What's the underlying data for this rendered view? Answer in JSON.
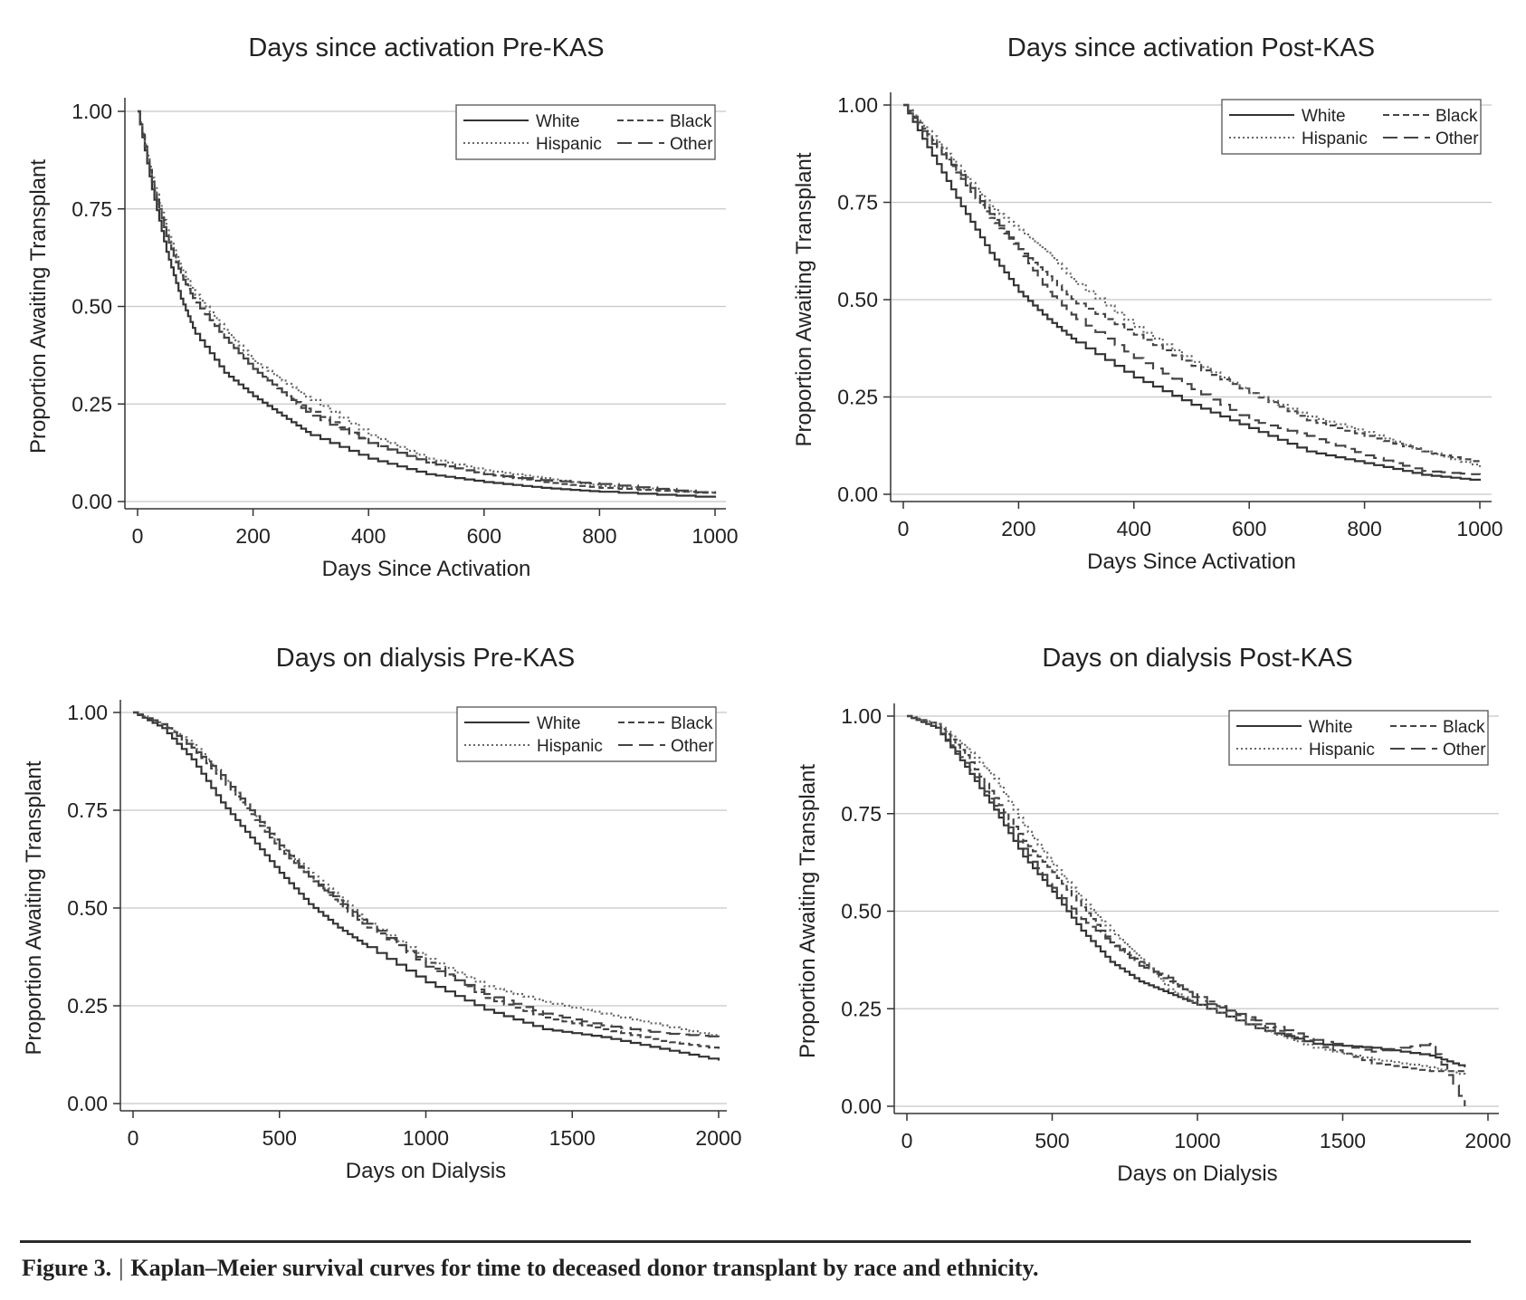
{
  "figure": {
    "label": "Figure 3.",
    "separator": "|",
    "caption": "Kaplan–Meier survival curves for time to deceased donor transplant by race and ethnicity."
  },
  "line_styles": {
    "White": {
      "color": "#333333",
      "dash": ""
    },
    "Black": {
      "color": "#444444",
      "dash": "7,4"
    },
    "Hispanic": {
      "color": "#666666",
      "dash": "2,3"
    },
    "Other": {
      "color": "#444444",
      "dash": "16,7"
    }
  },
  "chart_data": [
    {
      "type": "line",
      "title": "Days since activation Pre-KAS",
      "xlabel": "Days Since Activation",
      "ylabel": "Proportion Awaiting Transplant",
      "xlim": [
        0,
        1000
      ],
      "ylim": [
        0,
        1
      ],
      "xticks": [
        "0",
        "200",
        "400",
        "600",
        "800",
        "1000"
      ],
      "yticks": [
        "0.00",
        "0.25",
        "0.50",
        "0.75",
        "1.00"
      ],
      "grid": true,
      "legend": "top-right",
      "series": [
        {
          "name": "White",
          "x": [
            0,
            25,
            50,
            75,
            100,
            150,
            200,
            250,
            300,
            400,
            500,
            600,
            700,
            800,
            1000
          ],
          "y": [
            1.0,
            0.8,
            0.64,
            0.52,
            0.43,
            0.33,
            0.27,
            0.22,
            0.17,
            0.11,
            0.07,
            0.05,
            0.035,
            0.025,
            0.01
          ]
        },
        {
          "name": "Black",
          "x": [
            0,
            25,
            50,
            75,
            100,
            150,
            200,
            250,
            300,
            400,
            500,
            600,
            700,
            800,
            1000
          ],
          "y": [
            1.0,
            0.82,
            0.68,
            0.58,
            0.51,
            0.42,
            0.34,
            0.28,
            0.23,
            0.15,
            0.1,
            0.07,
            0.05,
            0.035,
            0.02
          ]
        },
        {
          "name": "Hispanic",
          "x": [
            0,
            25,
            50,
            75,
            100,
            150,
            200,
            250,
            300,
            400,
            500,
            600,
            700,
            800,
            1000
          ],
          "y": [
            1.0,
            0.83,
            0.7,
            0.6,
            0.53,
            0.44,
            0.36,
            0.31,
            0.26,
            0.17,
            0.11,
            0.08,
            0.06,
            0.04,
            0.02
          ]
        },
        {
          "name": "Other",
          "x": [
            0,
            25,
            50,
            75,
            100,
            150,
            200,
            250,
            300,
            400,
            500,
            600,
            700,
            800,
            1000
          ],
          "y": [
            1.0,
            0.82,
            0.68,
            0.58,
            0.51,
            0.42,
            0.34,
            0.28,
            0.22,
            0.15,
            0.1,
            0.07,
            0.055,
            0.045,
            0.02
          ]
        }
      ]
    },
    {
      "type": "line",
      "title": "Days since activation Post-KAS",
      "xlabel": "Days Since Activation",
      "ylabel": "Proportion Awaiting Transplant",
      "xlim": [
        0,
        1000
      ],
      "ylim": [
        0,
        1
      ],
      "xticks": [
        "0",
        "200",
        "400",
        "600",
        "800",
        "1000"
      ],
      "yticks": [
        "0.00",
        "0.25",
        "0.50",
        "0.75",
        "1.00"
      ],
      "grid": true,
      "legend": "top-right",
      "series": [
        {
          "name": "White",
          "x": [
            0,
            50,
            100,
            150,
            200,
            250,
            300,
            400,
            500,
            600,
            700,
            800,
            900,
            1000
          ],
          "y": [
            1.0,
            0.87,
            0.74,
            0.62,
            0.52,
            0.45,
            0.39,
            0.3,
            0.23,
            0.17,
            0.11,
            0.08,
            0.05,
            0.035
          ]
        },
        {
          "name": "Black",
          "x": [
            0,
            50,
            100,
            150,
            200,
            250,
            300,
            400,
            500,
            600,
            700,
            800,
            900,
            1000
          ],
          "y": [
            1.0,
            0.91,
            0.81,
            0.71,
            0.63,
            0.56,
            0.49,
            0.41,
            0.33,
            0.26,
            0.19,
            0.15,
            0.11,
            0.08
          ]
        },
        {
          "name": "Hispanic",
          "x": [
            0,
            50,
            100,
            150,
            200,
            250,
            300,
            400,
            500,
            600,
            700,
            800,
            900,
            1000
          ],
          "y": [
            1.0,
            0.92,
            0.83,
            0.74,
            0.68,
            0.62,
            0.54,
            0.43,
            0.34,
            0.26,
            0.2,
            0.16,
            0.11,
            0.07
          ]
        },
        {
          "name": "Other",
          "x": [
            0,
            50,
            100,
            150,
            200,
            250,
            300,
            400,
            500,
            600,
            700,
            800,
            900,
            1000
          ],
          "y": [
            1.0,
            0.9,
            0.82,
            0.72,
            0.63,
            0.52,
            0.45,
            0.35,
            0.27,
            0.19,
            0.15,
            0.1,
            0.06,
            0.05
          ]
        }
      ]
    },
    {
      "type": "line",
      "title": "Days on dialysis Pre-KAS",
      "xlabel": "Days on Dialysis",
      "ylabel": "Proportion Awaiting Transplant",
      "xlim": [
        0,
        2000
      ],
      "ylim": [
        0,
        1
      ],
      "xticks": [
        "0",
        "500",
        "1000",
        "1500",
        "2000"
      ],
      "yticks": [
        "0.00",
        "0.25",
        "0.50",
        "0.75",
        "1.00"
      ],
      "grid": true,
      "legend": "top-right",
      "series": [
        {
          "name": "White",
          "x": [
            0,
            100,
            200,
            300,
            400,
            500,
            600,
            700,
            800,
            1000,
            1200,
            1400,
            1600,
            1800,
            2000
          ],
          "y": [
            1.0,
            0.96,
            0.88,
            0.77,
            0.68,
            0.59,
            0.51,
            0.45,
            0.4,
            0.31,
            0.24,
            0.19,
            0.17,
            0.14,
            0.11
          ]
        },
        {
          "name": "Black",
          "x": [
            0,
            100,
            200,
            300,
            400,
            500,
            600,
            700,
            800,
            1000,
            1200,
            1400,
            1600,
            1800,
            2000
          ],
          "y": [
            1.0,
            0.97,
            0.91,
            0.83,
            0.74,
            0.65,
            0.58,
            0.51,
            0.45,
            0.36,
            0.27,
            0.22,
            0.19,
            0.16,
            0.14
          ]
        },
        {
          "name": "Hispanic",
          "x": [
            0,
            100,
            200,
            300,
            400,
            500,
            600,
            700,
            800,
            1000,
            1200,
            1400,
            1600,
            1800,
            2000
          ],
          "y": [
            1.0,
            0.97,
            0.92,
            0.84,
            0.75,
            0.66,
            0.59,
            0.53,
            0.46,
            0.37,
            0.3,
            0.26,
            0.23,
            0.2,
            0.17
          ]
        },
        {
          "name": "Other",
          "x": [
            0,
            100,
            200,
            300,
            400,
            500,
            600,
            700,
            800,
            1000,
            1200,
            1400,
            1600,
            1800,
            2000
          ],
          "y": [
            1.0,
            0.97,
            0.91,
            0.84,
            0.75,
            0.66,
            0.58,
            0.52,
            0.46,
            0.35,
            0.28,
            0.23,
            0.2,
            0.18,
            0.17
          ]
        }
      ]
    },
    {
      "type": "line",
      "title": "Days on dialysis Post-KAS",
      "xlabel": "Days on Dialysis",
      "ylabel": "Proportion Awaiting Transplant",
      "xlim": [
        0,
        2000
      ],
      "ylim": [
        0,
        1
      ],
      "xticks": [
        "0",
        "500",
        "1000",
        "1500",
        "2000"
      ],
      "yticks": [
        "0.00",
        "0.25",
        "0.50",
        "0.75",
        "1.00"
      ],
      "grid": true,
      "legend": "top-right",
      "series": [
        {
          "name": "White",
          "x": [
            0,
            100,
            200,
            300,
            400,
            500,
            600,
            700,
            800,
            900,
            1000,
            1200,
            1400,
            1600,
            1800,
            1920
          ],
          "y": [
            1.0,
            0.97,
            0.87,
            0.76,
            0.64,
            0.55,
            0.45,
            0.37,
            0.32,
            0.29,
            0.26,
            0.2,
            0.16,
            0.15,
            0.13,
            0.1
          ]
        },
        {
          "name": "Black",
          "x": [
            0,
            100,
            200,
            300,
            400,
            500,
            600,
            700,
            800,
            900,
            1000,
            1200,
            1400,
            1600,
            1800,
            1920
          ],
          "y": [
            1.0,
            0.98,
            0.9,
            0.79,
            0.68,
            0.6,
            0.51,
            0.42,
            0.37,
            0.32,
            0.28,
            0.21,
            0.16,
            0.11,
            0.09,
            0.09
          ]
        },
        {
          "name": "Hispanic",
          "x": [
            0,
            100,
            200,
            300,
            400,
            500,
            600,
            700,
            800,
            900,
            1000,
            1200,
            1400,
            1600,
            1800,
            1920
          ],
          "y": [
            1.0,
            0.98,
            0.92,
            0.84,
            0.72,
            0.62,
            0.53,
            0.45,
            0.38,
            0.3,
            0.26,
            0.2,
            0.15,
            0.12,
            0.1,
            0.08
          ]
        },
        {
          "name": "Other",
          "x": [
            0,
            100,
            200,
            300,
            400,
            500,
            600,
            700,
            800,
            900,
            1000,
            1200,
            1400,
            1600,
            1800,
            1920
          ],
          "y": [
            1.0,
            0.97,
            0.88,
            0.77,
            0.66,
            0.56,
            0.48,
            0.42,
            0.36,
            0.33,
            0.27,
            0.22,
            0.17,
            0.14,
            0.16,
            0.0
          ]
        }
      ]
    }
  ]
}
